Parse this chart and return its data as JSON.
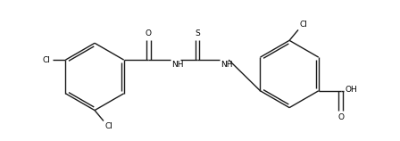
{
  "figsize": [
    4.48,
    1.58
  ],
  "dpi": 100,
  "bg_color": "#ffffff",
  "bond_color": "#1a1a1a",
  "text_color": "#000000",
  "bond_lw": 1.0,
  "font_size": 6.5,
  "xlim": [
    0,
    44.8
  ],
  "ylim": [
    0,
    15.8
  ]
}
